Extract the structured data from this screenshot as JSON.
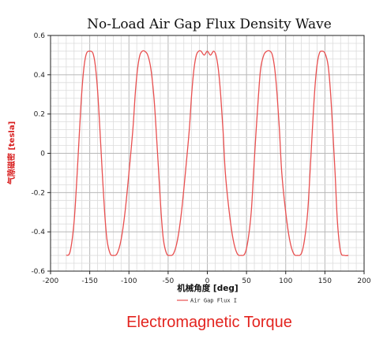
{
  "chart_data": {
    "type": "line",
    "title": "No-Load Air Gap Flux Density Wave",
    "xlabel": "机械角度 [deg]",
    "ylabel": "气隙磁密 [tesla]",
    "xlim": [
      -200,
      200
    ],
    "ylim": [
      -0.6,
      0.6
    ],
    "x_ticks": [
      -200,
      -150,
      -100,
      -50,
      0,
      50,
      100,
      150,
      200
    ],
    "x_tick_labels": [
      "-200",
      "-150",
      "-100",
      "-50",
      "0",
      "50",
      "100",
      "150",
      "200"
    ],
    "y_ticks": [
      0.6,
      0.4,
      0.2,
      0,
      -0.2,
      -0.4,
      -0.6
    ],
    "y_tick_labels": [
      "0.6",
      "0.4",
      "0.2",
      "0",
      "-0.2",
      "-0.4",
      "-0.6"
    ],
    "grid": true,
    "legend_position": "bottom-left",
    "series": [
      {
        "name": "Air Gap Flux I",
        "color": "#e85050",
        "x": [
          -180,
          -175,
          -170,
          -166,
          -163,
          -160,
          -157,
          -154,
          -150,
          -146,
          -143,
          -140,
          -137,
          -134,
          -131,
          -128,
          -124,
          -120,
          -115,
          -110,
          -105,
          -100,
          -95,
          -92,
          -89,
          -86,
          -83,
          -80,
          -76,
          -72,
          -68,
          -65,
          -62,
          -59,
          -56,
          -52,
          -48,
          -43,
          -38,
          -33,
          -28,
          -23,
          -20,
          -17,
          -14,
          -11,
          -8,
          -4,
          0,
          4,
          8,
          11,
          14,
          17,
          20,
          23,
          28,
          33,
          38,
          43,
          48,
          52,
          56,
          59,
          62,
          65,
          68,
          72,
          76,
          80,
          83,
          86,
          89,
          92,
          95,
          100,
          105,
          110,
          115,
          120,
          124,
          128,
          131,
          134,
          137,
          140,
          143,
          146,
          150,
          154,
          157,
          160,
          163,
          166,
          170,
          175,
          180
        ],
        "y": [
          -0.52,
          -0.5,
          -0.35,
          -0.1,
          0.12,
          0.32,
          0.45,
          0.51,
          0.52,
          0.51,
          0.45,
          0.32,
          0.12,
          -0.1,
          -0.3,
          -0.44,
          -0.51,
          -0.52,
          -0.51,
          -0.44,
          -0.3,
          -0.1,
          0.12,
          0.3,
          0.43,
          0.5,
          0.52,
          0.52,
          0.5,
          0.43,
          0.28,
          0.1,
          -0.1,
          -0.3,
          -0.44,
          -0.51,
          -0.52,
          -0.51,
          -0.44,
          -0.3,
          -0.1,
          0.12,
          0.3,
          0.43,
          0.5,
          0.52,
          0.52,
          0.5,
          0.52,
          0.5,
          0.52,
          0.5,
          0.43,
          0.3,
          0.12,
          -0.1,
          -0.3,
          -0.44,
          -0.51,
          -0.52,
          -0.51,
          -0.44,
          -0.3,
          -0.1,
          0.1,
          0.28,
          0.43,
          0.5,
          0.52,
          0.52,
          0.5,
          0.43,
          0.3,
          0.12,
          -0.1,
          -0.3,
          -0.44,
          -0.51,
          -0.52,
          -0.51,
          -0.44,
          -0.3,
          -0.1,
          0.12,
          0.32,
          0.45,
          0.51,
          0.52,
          0.51,
          0.45,
          0.32,
          0.12,
          -0.1,
          -0.35,
          -0.5,
          -0.52,
          -0.52
        ]
      }
    ]
  },
  "caption": "Electromagnetic Torque"
}
